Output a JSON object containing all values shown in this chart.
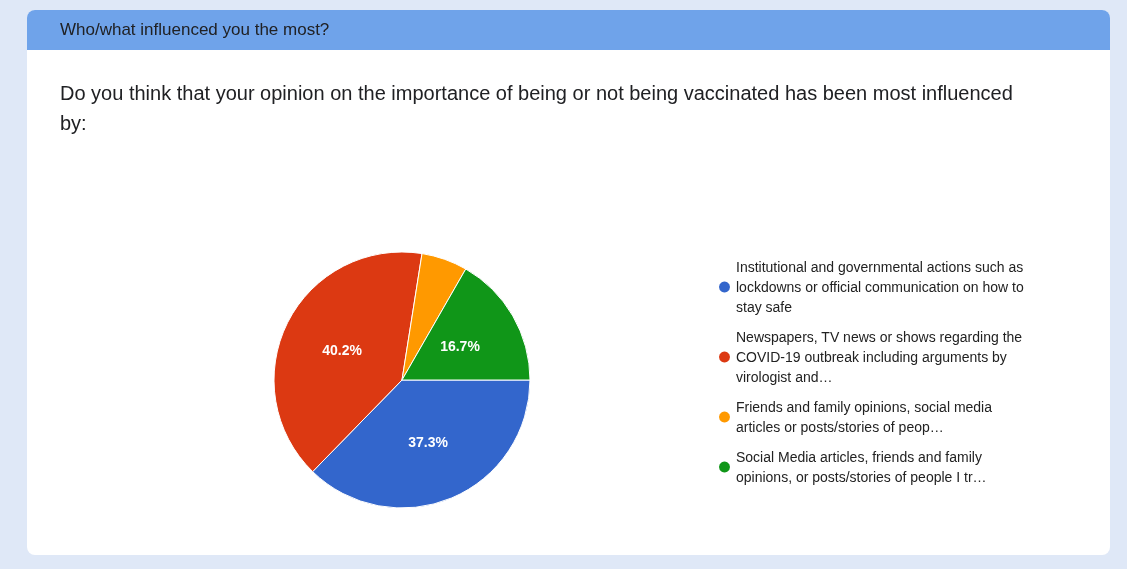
{
  "chart_data": {
    "type": "pie",
    "title": "Who/what influenced you the most?",
    "subtitle": "Do you think that your opinion on the importance of being or not being vaccinated has been most influenced by:",
    "categories": [
      "Institutional and governmental actions such as lockdowns or official communication on how to stay safe",
      "Newspapers, TV news or shows regarding the COVID-19 outbreak including arguments by virologist and…",
      "Friends and family opinions, social media articles or posts/stories of peop…",
      "Social Media articles, friends and family opinions, or posts/stories of people I tr…"
    ],
    "values": [
      37.3,
      40.2,
      5.8,
      16.7
    ],
    "colors": [
      "#3366cc",
      "#dc3912",
      "#ff9900",
      "#109618"
    ],
    "value_labels": [
      "37.3%",
      "40.2%",
      null,
      "16.7%"
    ],
    "legend": "right"
  }
}
